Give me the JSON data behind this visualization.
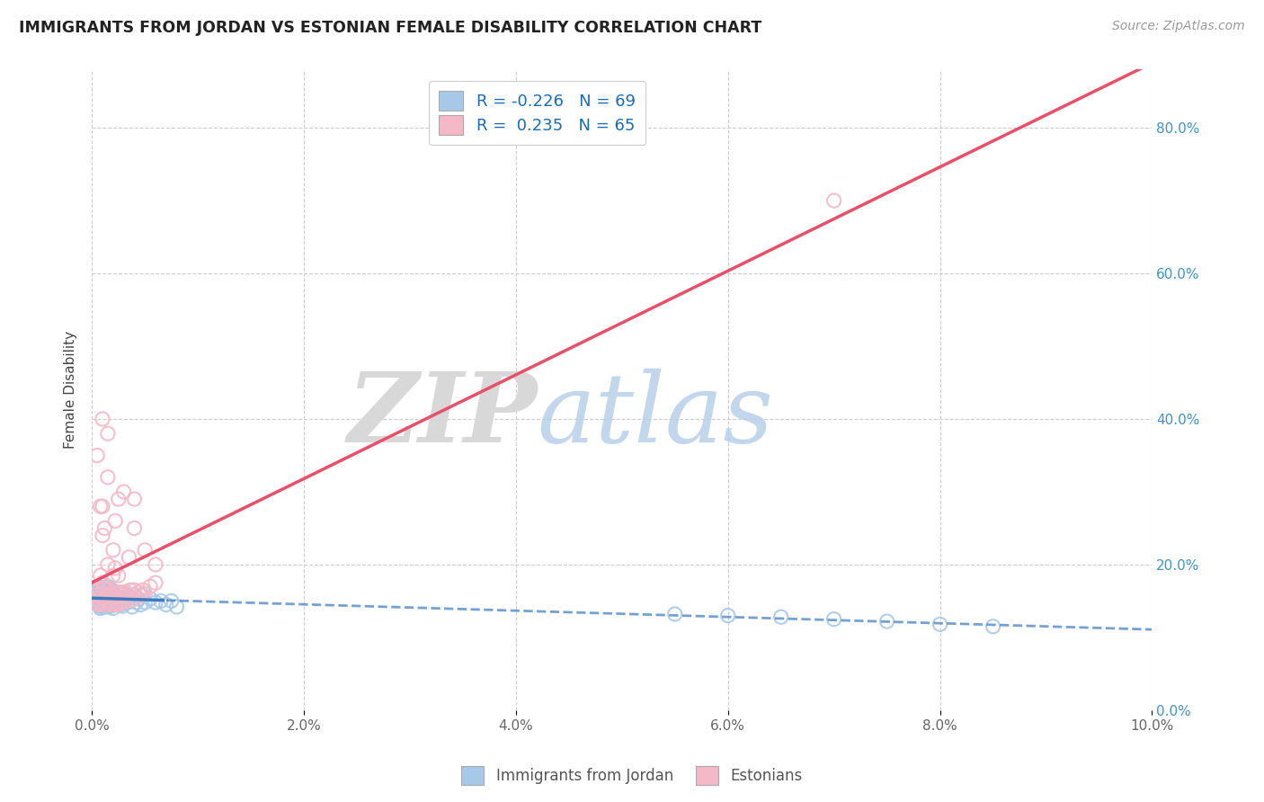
{
  "title": "IMMIGRANTS FROM JORDAN VS ESTONIAN FEMALE DISABILITY CORRELATION CHART",
  "source_text": "Source: ZipAtlas.com",
  "ylabel": "Female Disability",
  "legend_labels": [
    "Immigrants from Jordan",
    "Estonians"
  ],
  "r_values": [
    -0.226,
    0.235
  ],
  "n_values": [
    69,
    65
  ],
  "blue_color": "#a8c8e8",
  "pink_color": "#f4b8c8",
  "blue_line_color": "#3a7abf",
  "pink_line_color": "#e8506a",
  "x_min": 0.0,
  "x_max": 0.1,
  "y_min": 0.0,
  "y_max": 0.88,
  "title_color": "#222222",
  "background_color": "#ffffff",
  "grid_color": "#cccccc",
  "blue_scatter_x": [
    0.0002,
    0.0003,
    0.0004,
    0.0005,
    0.0005,
    0.0006,
    0.0006,
    0.0007,
    0.0007,
    0.0008,
    0.0008,
    0.0008,
    0.0009,
    0.0009,
    0.001,
    0.001,
    0.0011,
    0.0011,
    0.0012,
    0.0012,
    0.0013,
    0.0013,
    0.0014,
    0.0014,
    0.0015,
    0.0015,
    0.0016,
    0.0016,
    0.0017,
    0.0017,
    0.0018,
    0.0018,
    0.0019,
    0.0019,
    0.002,
    0.002,
    0.0021,
    0.0022,
    0.0023,
    0.0024,
    0.0025,
    0.0026,
    0.0027,
    0.0028,
    0.0029,
    0.003,
    0.0032,
    0.0034,
    0.0036,
    0.0038,
    0.004,
    0.0042,
    0.0044,
    0.0046,
    0.0048,
    0.005,
    0.0055,
    0.006,
    0.0065,
    0.007,
    0.0075,
    0.008,
    0.055,
    0.06,
    0.065,
    0.07,
    0.075,
    0.08,
    0.085
  ],
  "blue_scatter_y": [
    0.155,
    0.16,
    0.15,
    0.165,
    0.145,
    0.17,
    0.148,
    0.162,
    0.143,
    0.168,
    0.14,
    0.155,
    0.172,
    0.147,
    0.158,
    0.142,
    0.163,
    0.15,
    0.156,
    0.145,
    0.165,
    0.148,
    0.16,
    0.142,
    0.17,
    0.15,
    0.155,
    0.144,
    0.162,
    0.149,
    0.158,
    0.143,
    0.165,
    0.148,
    0.155,
    0.14,
    0.16,
    0.153,
    0.148,
    0.162,
    0.15,
    0.155,
    0.145,
    0.158,
    0.143,
    0.16,
    0.152,
    0.148,
    0.155,
    0.142,
    0.158,
    0.148,
    0.153,
    0.145,
    0.158,
    0.148,
    0.153,
    0.148,
    0.15,
    0.145,
    0.15,
    0.142,
    0.132,
    0.13,
    0.128,
    0.125,
    0.122,
    0.118,
    0.115
  ],
  "pink_scatter_x": [
    0.0003,
    0.0004,
    0.0005,
    0.0006,
    0.0007,
    0.0008,
    0.0009,
    0.001,
    0.0011,
    0.0012,
    0.0013,
    0.0014,
    0.0015,
    0.0016,
    0.0017,
    0.0018,
    0.0019,
    0.002,
    0.0021,
    0.0022,
    0.0023,
    0.0024,
    0.0025,
    0.0026,
    0.0027,
    0.0028,
    0.0029,
    0.003,
    0.0031,
    0.0032,
    0.0034,
    0.0036,
    0.0038,
    0.004,
    0.0042,
    0.0044,
    0.0046,
    0.0048,
    0.005,
    0.0055,
    0.006,
    0.001,
    0.002,
    0.0008,
    0.0012,
    0.0015,
    0.0022,
    0.003,
    0.005,
    0.0008,
    0.0015,
    0.0022,
    0.0035,
    0.001,
    0.002,
    0.001,
    0.0005,
    0.0025,
    0.0015,
    0.004,
    0.006,
    0.07,
    0.004,
    0.0025,
    0.001
  ],
  "pink_scatter_y": [
    0.148,
    0.152,
    0.158,
    0.145,
    0.165,
    0.148,
    0.155,
    0.16,
    0.145,
    0.168,
    0.15,
    0.158,
    0.165,
    0.148,
    0.158,
    0.145,
    0.155,
    0.162,
    0.145,
    0.155,
    0.148,
    0.162,
    0.145,
    0.155,
    0.16,
    0.148,
    0.162,
    0.155,
    0.15,
    0.162,
    0.158,
    0.165,
    0.152,
    0.165,
    0.155,
    0.162,
    0.158,
    0.165,
    0.16,
    0.17,
    0.175,
    0.24,
    0.22,
    0.28,
    0.25,
    0.32,
    0.26,
    0.3,
    0.22,
    0.185,
    0.2,
    0.195,
    0.21,
    0.175,
    0.185,
    0.28,
    0.35,
    0.29,
    0.38,
    0.25,
    0.2,
    0.7,
    0.29,
    0.185,
    0.4
  ]
}
